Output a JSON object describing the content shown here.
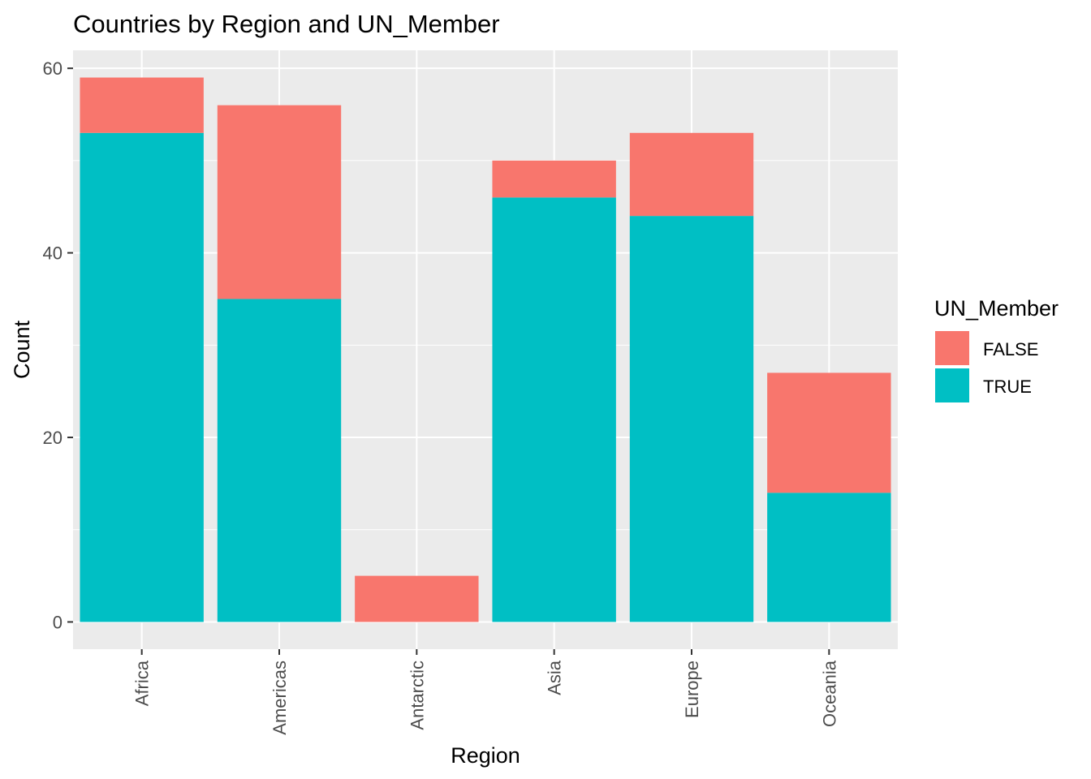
{
  "chart_data": {
    "type": "bar",
    "stacked": true,
    "title": "Countries by Region and UN_Member",
    "xlabel": "Region",
    "ylabel": "Count",
    "categories": [
      "Africa",
      "Americas",
      "Antarctic",
      "Asia",
      "Europe",
      "Oceania"
    ],
    "series": [
      {
        "name": "TRUE",
        "color": "#00BFC4",
        "values": [
          53,
          35,
          0,
          46,
          44,
          14
        ]
      },
      {
        "name": "FALSE",
        "color": "#F8766D",
        "values": [
          6,
          21,
          5,
          4,
          9,
          13
        ]
      }
    ],
    "ylim": [
      -2.95,
      61.95
    ],
    "yticks": [
      0,
      20,
      40,
      60
    ],
    "grid": true,
    "legend": {
      "title": "UN_Member",
      "position": "right",
      "entries": [
        {
          "label": "FALSE",
          "color": "#F8766D"
        },
        {
          "label": "TRUE",
          "color": "#00BFC4"
        }
      ]
    },
    "panel_color": "#EBEBEB",
    "grid_color": "#FFFFFF"
  }
}
